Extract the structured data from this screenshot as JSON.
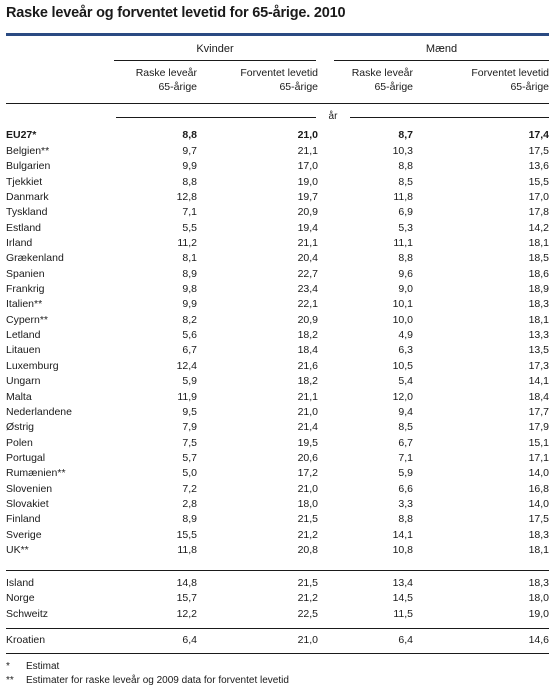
{
  "title": "Raske leveår og forventet levetid for 65-årige. 2010",
  "header": {
    "group_women": "Kvinder",
    "group_men": "Mænd",
    "col_healthy_line1": "Raske leveår",
    "col_healthy_line2": "65-årige",
    "col_expect_line1": "Forventet levetid",
    "col_expect_line2": "65-årige",
    "unit": "år"
  },
  "table": {
    "summary": [
      {
        "country": "EU27*",
        "w_healthy": "8,8",
        "w_expect": "21,0",
        "m_healthy": "8,7",
        "m_expect": "17,4"
      }
    ],
    "eu_members": [
      {
        "country": "Belgien**",
        "w_healthy": "9,7",
        "w_expect": "21,1",
        "m_healthy": "10,3",
        "m_expect": "17,5"
      },
      {
        "country": "Bulgarien",
        "w_healthy": "9,9",
        "w_expect": "17,0",
        "m_healthy": "8,8",
        "m_expect": "13,6"
      },
      {
        "country": "Tjekkiet",
        "w_healthy": "8,8",
        "w_expect": "19,0",
        "m_healthy": "8,5",
        "m_expect": "15,5"
      },
      {
        "country": "Danmark",
        "w_healthy": "12,8",
        "w_expect": "19,7",
        "m_healthy": "11,8",
        "m_expect": "17,0"
      },
      {
        "country": "Tyskland",
        "w_healthy": "7,1",
        "w_expect": "20,9",
        "m_healthy": "6,9",
        "m_expect": "17,8"
      },
      {
        "country": "Estland",
        "w_healthy": "5,5",
        "w_expect": "19,4",
        "m_healthy": "5,3",
        "m_expect": "14,2"
      },
      {
        "country": "Irland",
        "w_healthy": "11,2",
        "w_expect": "21,1",
        "m_healthy": "11,1",
        "m_expect": "18,1"
      },
      {
        "country": "Grækenland",
        "w_healthy": "8,1",
        "w_expect": "20,4",
        "m_healthy": "8,8",
        "m_expect": "18,5"
      },
      {
        "country": "Spanien",
        "w_healthy": "8,9",
        "w_expect": "22,7",
        "m_healthy": "9,6",
        "m_expect": "18,6"
      },
      {
        "country": "Frankrig",
        "w_healthy": "9,8",
        "w_expect": "23,4",
        "m_healthy": "9,0",
        "m_expect": "18,9"
      },
      {
        "country": "Italien**",
        "w_healthy": "9,9",
        "w_expect": "22,1",
        "m_healthy": "10,1",
        "m_expect": "18,3"
      },
      {
        "country": "Cypern**",
        "w_healthy": "8,2",
        "w_expect": "20,9",
        "m_healthy": "10,0",
        "m_expect": "18,1"
      },
      {
        "country": "Letland",
        "w_healthy": "5,6",
        "w_expect": "18,2",
        "m_healthy": "4,9",
        "m_expect": "13,3"
      },
      {
        "country": "Litauen",
        "w_healthy": "6,7",
        "w_expect": "18,4",
        "m_healthy": "6,3",
        "m_expect": "13,5"
      },
      {
        "country": "Luxemburg",
        "w_healthy": "12,4",
        "w_expect": "21,6",
        "m_healthy": "10,5",
        "m_expect": "17,3"
      },
      {
        "country": "Ungarn",
        "w_healthy": "5,9",
        "w_expect": "18,2",
        "m_healthy": "5,4",
        "m_expect": "14,1"
      },
      {
        "country": "Malta",
        "w_healthy": "11,9",
        "w_expect": "21,1",
        "m_healthy": "12,0",
        "m_expect": "18,4"
      },
      {
        "country": "Nederlandene",
        "w_healthy": "9,5",
        "w_expect": "21,0",
        "m_healthy": "9,4",
        "m_expect": "17,7"
      },
      {
        "country": "Østrig",
        "w_healthy": "7,9",
        "w_expect": "21,4",
        "m_healthy": "8,5",
        "m_expect": "17,9"
      },
      {
        "country": "Polen",
        "w_healthy": "7,5",
        "w_expect": "19,5",
        "m_healthy": "6,7",
        "m_expect": "15,1"
      },
      {
        "country": "Portugal",
        "w_healthy": "5,7",
        "w_expect": "20,6",
        "m_healthy": "7,1",
        "m_expect": "17,1"
      },
      {
        "country": "Rumænien**",
        "w_healthy": "5,0",
        "w_expect": "17,2",
        "m_healthy": "5,9",
        "m_expect": "14,0"
      },
      {
        "country": "Slovenien",
        "w_healthy": "7,2",
        "w_expect": "21,0",
        "m_healthy": "6,6",
        "m_expect": "16,8"
      },
      {
        "country": "Slovakiet",
        "w_healthy": "2,8",
        "w_expect": "18,0",
        "m_healthy": "3,3",
        "m_expect": "14,0"
      },
      {
        "country": "Finland",
        "w_healthy": "8,9",
        "w_expect": "21,5",
        "m_healthy": "8,8",
        "m_expect": "17,5"
      },
      {
        "country": "Sverige",
        "w_healthy": "15,5",
        "w_expect": "21,2",
        "m_healthy": "14,1",
        "m_expect": "18,3"
      },
      {
        "country": "UK**",
        "w_healthy": "11,8",
        "w_expect": "20,8",
        "m_healthy": "10,8",
        "m_expect": "18,1"
      }
    ],
    "other_europe": [
      {
        "country": "Island",
        "w_healthy": "14,8",
        "w_expect": "21,5",
        "m_healthy": "13,4",
        "m_expect": "18,3"
      },
      {
        "country": "Norge",
        "w_healthy": "15,7",
        "w_expect": "21,2",
        "m_healthy": "14,5",
        "m_expect": "18,0"
      },
      {
        "country": "Schweitz",
        "w_healthy": "12,2",
        "w_expect": "22,5",
        "m_healthy": "11,5",
        "m_expect": "19,0"
      }
    ],
    "candidate": [
      {
        "country": "Kroatien",
        "w_healthy": "6,4",
        "w_expect": "21,0",
        "m_healthy": "6,4",
        "m_expect": "14,6"
      }
    ]
  },
  "footnotes": [
    {
      "mark": "*",
      "text": "Estimat"
    },
    {
      "mark": "**",
      "text": "Estimater for raske leveår og 2009 data for forventet levetid"
    }
  ]
}
